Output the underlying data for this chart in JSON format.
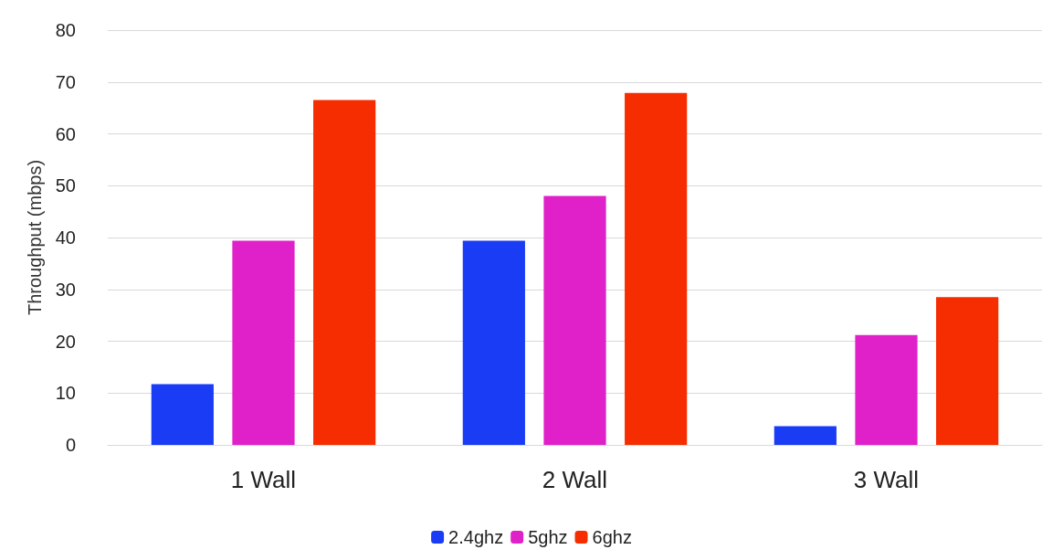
{
  "chart_data": {
    "type": "bar",
    "ylabel": "Throughput (mbps)",
    "categories": [
      "1 Wall",
      "2 Wall",
      "3 Wall"
    ],
    "series": [
      {
        "name": "2.4ghz",
        "color": "#1a3cf5",
        "values": [
          11.7,
          39.4,
          3.6
        ]
      },
      {
        "name": "5ghz",
        "color": "#e020c8",
        "values": [
          39.4,
          48,
          21.2
        ]
      },
      {
        "name": "6ghz",
        "color": "#f52d00",
        "values": [
          66.5,
          67.9,
          28.5
        ]
      }
    ],
    "ylim": [
      0,
      80
    ],
    "yticks": [
      0,
      10,
      20,
      30,
      40,
      50,
      60,
      70,
      80
    ],
    "grid": "y",
    "legend": "bottom"
  }
}
